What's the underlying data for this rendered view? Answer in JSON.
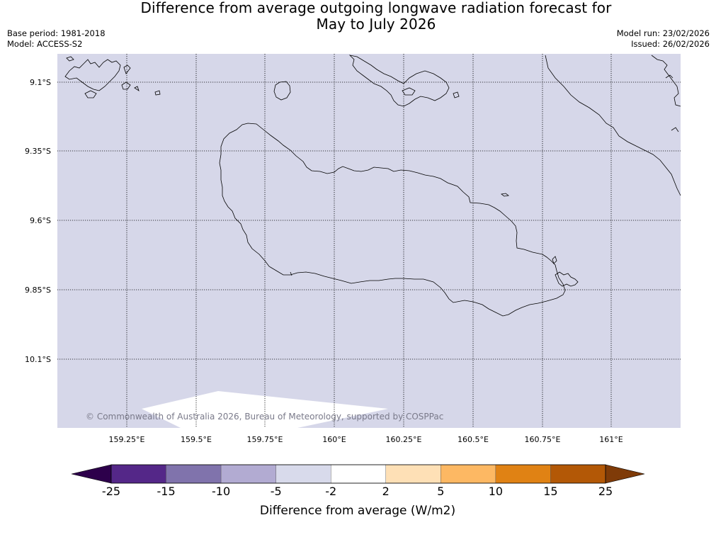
{
  "title": {
    "line1": "Difference from average outgoing longwave radiation forecast for",
    "line2": "May to July 2026"
  },
  "meta": {
    "base_period": "Base period: 1981-2018",
    "model": "Model: ACCESS-S2",
    "model_run": "Model run: 23/02/2026",
    "issued": "Issued: 26/02/2026"
  },
  "map": {
    "background_color": "#d6d7e9",
    "lat_labels": [
      "9.1°S",
      "9.35°S",
      "9.6°S",
      "9.85°S",
      "10.1°S"
    ],
    "lon_labels": [
      "159.25°E",
      "159.5°E",
      "159.75°E",
      "160°E",
      "160.25°E",
      "160.5°E",
      "160.75°E",
      "161°E"
    ],
    "copyright": "© Commonwealth of Australia 2026, Bureau of Meteorology, supported by COSPPac"
  },
  "colorbar": {
    "title": "Difference from average (W/m2)",
    "labels": [
      "-25",
      "-15",
      "-10",
      "-5",
      "-2",
      "2",
      "5",
      "10",
      "15",
      "25"
    ],
    "under_color": "#2d004b",
    "over_color": "#7f3b08",
    "colors": [
      "#542788",
      "#8073ac",
      "#b2abd2",
      "#d8daeb",
      "#ffffff",
      "#fee0b6",
      "#fdb863",
      "#e08214",
      "#b35806"
    ]
  }
}
